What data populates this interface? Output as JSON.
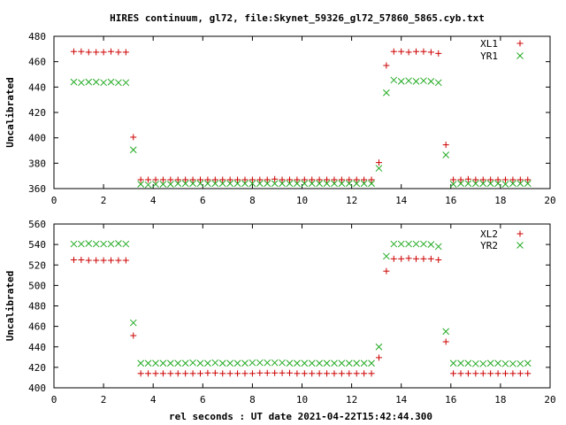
{
  "title": "HIRES continuum, gl72, file:Skynet_59326_gl72_57860_5865.cyb.txt",
  "xlabel": "rel seconds : UT date 2021-04-22T15:42:44.300",
  "colors": {
    "series1": "#cc0000",
    "series2": "#22aa22",
    "axis": "#000000"
  },
  "chart_data": [
    {
      "type": "scatter",
      "ylabel": "Uncalibrated",
      "xlim": [
        0,
        20
      ],
      "ylim": [
        360,
        480
      ],
      "xticks": [
        0,
        2,
        4,
        6,
        8,
        10,
        12,
        14,
        16,
        18,
        20
      ],
      "yticks": [
        360,
        380,
        400,
        420,
        440,
        460,
        480
      ],
      "legend_position": "top-right",
      "series": [
        {
          "name": "XL1",
          "marker": "plus",
          "points": [
            [
              0.8,
              468
            ],
            [
              1.1,
              468
            ],
            [
              1.4,
              467.5
            ],
            [
              1.7,
              467.5
            ],
            [
              2.0,
              467.5
            ],
            [
              2.3,
              468
            ],
            [
              2.6,
              467.5
            ],
            [
              2.9,
              467.5
            ],
            [
              3.2,
              400.5
            ],
            [
              3.5,
              367
            ],
            [
              3.8,
              367
            ],
            [
              4.1,
              367
            ],
            [
              4.4,
              367
            ],
            [
              4.7,
              367
            ],
            [
              5.0,
              367
            ],
            [
              5.3,
              367
            ],
            [
              5.6,
              367
            ],
            [
              5.9,
              367
            ],
            [
              6.2,
              367
            ],
            [
              6.5,
              367
            ],
            [
              6.8,
              367
            ],
            [
              7.1,
              367
            ],
            [
              7.4,
              367
            ],
            [
              7.7,
              367
            ],
            [
              8.0,
              367
            ],
            [
              8.3,
              367
            ],
            [
              8.6,
              367
            ],
            [
              8.9,
              367.5
            ],
            [
              9.2,
              367
            ],
            [
              9.5,
              367
            ],
            [
              9.8,
              367
            ],
            [
              10.1,
              367
            ],
            [
              10.4,
              367
            ],
            [
              10.7,
              367
            ],
            [
              11.0,
              367
            ],
            [
              11.3,
              367
            ],
            [
              11.6,
              367
            ],
            [
              11.9,
              367
            ],
            [
              12.2,
              367
            ],
            [
              12.5,
              367
            ],
            [
              12.8,
              367
            ],
            [
              13.1,
              380.5
            ],
            [
              13.4,
              457
            ],
            [
              13.7,
              468
            ],
            [
              14.0,
              468
            ],
            [
              14.3,
              467.5
            ],
            [
              14.6,
              468
            ],
            [
              14.9,
              468
            ],
            [
              15.2,
              467.5
            ],
            [
              15.5,
              466.5
            ],
            [
              15.8,
              394.5
            ],
            [
              16.1,
              367
            ],
            [
              16.4,
              367
            ],
            [
              16.7,
              367.5
            ],
            [
              17.0,
              367
            ],
            [
              17.3,
              367
            ],
            [
              17.6,
              367
            ],
            [
              17.9,
              367
            ],
            [
              18.2,
              367
            ],
            [
              18.5,
              367
            ],
            [
              18.8,
              367
            ],
            [
              19.1,
              367
            ]
          ]
        },
        {
          "name": "YR1",
          "marker": "cross",
          "points": [
            [
              0.8,
              444
            ],
            [
              1.1,
              443.5
            ],
            [
              1.4,
              444
            ],
            [
              1.7,
              444
            ],
            [
              2.0,
              443.5
            ],
            [
              2.3,
              444
            ],
            [
              2.6,
              443.5
            ],
            [
              2.9,
              443.5
            ],
            [
              3.2,
              390.5
            ],
            [
              3.5,
              363.5
            ],
            [
              3.8,
              363
            ],
            [
              4.1,
              363.5
            ],
            [
              4.4,
              363.5
            ],
            [
              4.7,
              363.5
            ],
            [
              5.0,
              364
            ],
            [
              5.3,
              364
            ],
            [
              5.6,
              364
            ],
            [
              5.9,
              364
            ],
            [
              6.2,
              364
            ],
            [
              6.5,
              364
            ],
            [
              6.8,
              364
            ],
            [
              7.1,
              364
            ],
            [
              7.4,
              364
            ],
            [
              7.7,
              364
            ],
            [
              8.0,
              364
            ],
            [
              8.3,
              364
            ],
            [
              8.6,
              364
            ],
            [
              8.9,
              364
            ],
            [
              9.2,
              364
            ],
            [
              9.5,
              364
            ],
            [
              9.8,
              364
            ],
            [
              10.1,
              364
            ],
            [
              10.4,
              364
            ],
            [
              10.7,
              364
            ],
            [
              11.0,
              364
            ],
            [
              11.3,
              364
            ],
            [
              11.6,
              364
            ],
            [
              11.9,
              364
            ],
            [
              12.2,
              364
            ],
            [
              12.5,
              364
            ],
            [
              12.8,
              364
            ],
            [
              13.1,
              376
            ],
            [
              13.4,
              435.5
            ],
            [
              13.7,
              445.5
            ],
            [
              14.0,
              444.5
            ],
            [
              14.3,
              445
            ],
            [
              14.6,
              444.5
            ],
            [
              14.9,
              445
            ],
            [
              15.2,
              444.5
            ],
            [
              15.5,
              443.5
            ],
            [
              15.8,
              386.5
            ],
            [
              16.1,
              363.5
            ],
            [
              16.4,
              364
            ],
            [
              16.7,
              364
            ],
            [
              17.0,
              364
            ],
            [
              17.3,
              364
            ],
            [
              17.6,
              364
            ],
            [
              17.9,
              364
            ],
            [
              18.2,
              363.5
            ],
            [
              18.5,
              364
            ],
            [
              18.8,
              364
            ],
            [
              19.1,
              364
            ]
          ]
        }
      ]
    },
    {
      "type": "scatter",
      "ylabel": "Uncalibrated",
      "xlim": [
        0,
        20
      ],
      "ylim": [
        400,
        560
      ],
      "xticks": [
        0,
        2,
        4,
        6,
        8,
        10,
        12,
        14,
        16,
        18,
        20
      ],
      "yticks": [
        400,
        420,
        440,
        460,
        480,
        500,
        520,
        540,
        560
      ],
      "legend_position": "top-right",
      "series": [
        {
          "name": "XL2",
          "marker": "plus",
          "points": [
            [
              0.8,
              525
            ],
            [
              1.1,
              525
            ],
            [
              1.4,
              524.5
            ],
            [
              1.7,
              524.5
            ],
            [
              2.0,
              524.5
            ],
            [
              2.3,
              524.5
            ],
            [
              2.6,
              524.5
            ],
            [
              2.9,
              524.5
            ],
            [
              3.2,
              451
            ],
            [
              3.5,
              414
            ],
            [
              3.8,
              414
            ],
            [
              4.1,
              414
            ],
            [
              4.4,
              414
            ],
            [
              4.7,
              414
            ],
            [
              5.0,
              414
            ],
            [
              5.3,
              414
            ],
            [
              5.6,
              414
            ],
            [
              5.9,
              414
            ],
            [
              6.2,
              414.5
            ],
            [
              6.5,
              414.5
            ],
            [
              6.8,
              414
            ],
            [
              7.1,
              414
            ],
            [
              7.4,
              414
            ],
            [
              7.7,
              414
            ],
            [
              8.0,
              414
            ],
            [
              8.3,
              414.5
            ],
            [
              8.6,
              414.5
            ],
            [
              8.9,
              414.5
            ],
            [
              9.2,
              414.5
            ],
            [
              9.5,
              414.5
            ],
            [
              9.8,
              414
            ],
            [
              10.1,
              414
            ],
            [
              10.4,
              414
            ],
            [
              10.7,
              414
            ],
            [
              11.0,
              414
            ],
            [
              11.3,
              414
            ],
            [
              11.6,
              414
            ],
            [
              11.9,
              414
            ],
            [
              12.2,
              414
            ],
            [
              12.5,
              414
            ],
            [
              12.8,
              414
            ],
            [
              13.1,
              429.5
            ],
            [
              13.4,
              514
            ],
            [
              13.7,
              526
            ],
            [
              14.0,
              526
            ],
            [
              14.3,
              526.5
            ],
            [
              14.6,
              526
            ],
            [
              14.9,
              526
            ],
            [
              15.2,
              526
            ],
            [
              15.5,
              525
            ],
            [
              15.8,
              445
            ],
            [
              16.1,
              414
            ],
            [
              16.4,
              414
            ],
            [
              16.7,
              414
            ],
            [
              17.0,
              414
            ],
            [
              17.3,
              414
            ],
            [
              17.6,
              414
            ],
            [
              17.9,
              414
            ],
            [
              18.2,
              414
            ],
            [
              18.5,
              414
            ],
            [
              18.8,
              414
            ],
            [
              19.1,
              414
            ]
          ]
        },
        {
          "name": "YR2",
          "marker": "cross",
          "points": [
            [
              0.8,
              540.5
            ],
            [
              1.1,
              540.5
            ],
            [
              1.4,
              541
            ],
            [
              1.7,
              540.5
            ],
            [
              2.0,
              540.5
            ],
            [
              2.3,
              540.5
            ],
            [
              2.6,
              541
            ],
            [
              2.9,
              540.5
            ],
            [
              3.2,
              463.5
            ],
            [
              3.5,
              424
            ],
            [
              3.8,
              424
            ],
            [
              4.1,
              424
            ],
            [
              4.4,
              424
            ],
            [
              4.7,
              424
            ],
            [
              5.0,
              424
            ],
            [
              5.3,
              424
            ],
            [
              5.6,
              424.5
            ],
            [
              5.9,
              424
            ],
            [
              6.2,
              424
            ],
            [
              6.5,
              424.5
            ],
            [
              6.8,
              424
            ],
            [
              7.1,
              424
            ],
            [
              7.4,
              424
            ],
            [
              7.7,
              424
            ],
            [
              8.0,
              424.5
            ],
            [
              8.3,
              424.5
            ],
            [
              8.6,
              424.5
            ],
            [
              8.9,
              424.5
            ],
            [
              9.2,
              424.5
            ],
            [
              9.5,
              424
            ],
            [
              9.8,
              424
            ],
            [
              10.1,
              424
            ],
            [
              10.4,
              424
            ],
            [
              10.7,
              424
            ],
            [
              11.0,
              424
            ],
            [
              11.3,
              424
            ],
            [
              11.6,
              424
            ],
            [
              11.9,
              424
            ],
            [
              12.2,
              424
            ],
            [
              12.5,
              424
            ],
            [
              12.8,
              424
            ],
            [
              13.1,
              440
            ],
            [
              13.4,
              528.5
            ],
            [
              13.7,
              540.5
            ],
            [
              14.0,
              540.5
            ],
            [
              14.3,
              540.5
            ],
            [
              14.6,
              540.5
            ],
            [
              14.9,
              540.5
            ],
            [
              15.2,
              540
            ],
            [
              15.5,
              538
            ],
            [
              15.8,
              455
            ],
            [
              16.1,
              424
            ],
            [
              16.4,
              424
            ],
            [
              16.7,
              424
            ],
            [
              17.0,
              423.5
            ],
            [
              17.3,
              423.5
            ],
            [
              17.6,
              424
            ],
            [
              17.9,
              424
            ],
            [
              18.2,
              423.5
            ],
            [
              18.5,
              423.5
            ],
            [
              18.8,
              423.5
            ],
            [
              19.1,
              424
            ]
          ]
        }
      ]
    }
  ]
}
